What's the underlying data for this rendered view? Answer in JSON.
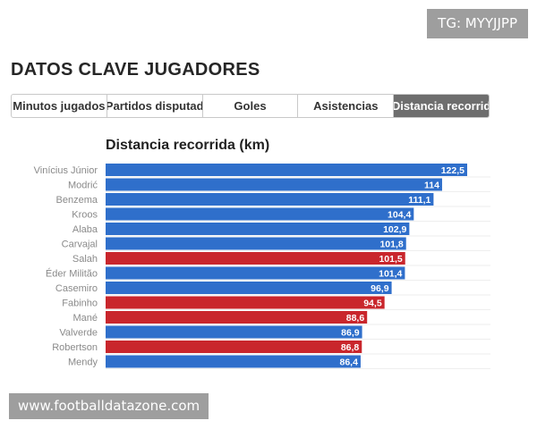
{
  "watermark_top": "TG: MYYJJPP",
  "page": {
    "title": "DATOS CLAVE JUGADORES"
  },
  "tabs": [
    {
      "label": "Minutos jugados",
      "active": false
    },
    {
      "label": "Partidos disputad",
      "active": false
    },
    {
      "label": "Goles",
      "active": false
    },
    {
      "label": "Asistencias",
      "active": false
    },
    {
      "label": "Distancia recorrid",
      "active": true
    }
  ],
  "colors": {
    "blue": "#2f6fcb",
    "red": "#c9262c",
    "label_grey": "#8a8a8a"
  },
  "chart_data": {
    "type": "bar",
    "orientation": "horizontal",
    "title": "Distancia recorrida (km)",
    "xlim": [
      0,
      122.5
    ],
    "grid": false,
    "categories": [
      "Vinícius Júnior",
      "Modrić",
      "Benzema",
      "Kroos",
      "Alaba",
      "Carvajal",
      "Salah",
      "Éder Militão",
      "Casemiro",
      "Fabinho",
      "Mané",
      "Valverde",
      "Robertson",
      "Mendy"
    ],
    "values": [
      122.5,
      114,
      111.1,
      104.4,
      102.9,
      101.8,
      101.5,
      101.4,
      96.9,
      94.5,
      88.6,
      86.9,
      86.8,
      86.4
    ],
    "value_labels": [
      "122,5",
      "114",
      "111,1",
      "104,4",
      "102,9",
      "101,8",
      "101,5",
      "101,4",
      "96,9",
      "94,5",
      "88,6",
      "86,9",
      "86,8",
      "86,4"
    ],
    "bar_colors": [
      "blue",
      "blue",
      "blue",
      "blue",
      "blue",
      "blue",
      "red",
      "blue",
      "blue",
      "red",
      "red",
      "blue",
      "red",
      "blue"
    ]
  },
  "watermark_bottom": "www.footballdatazone.com"
}
